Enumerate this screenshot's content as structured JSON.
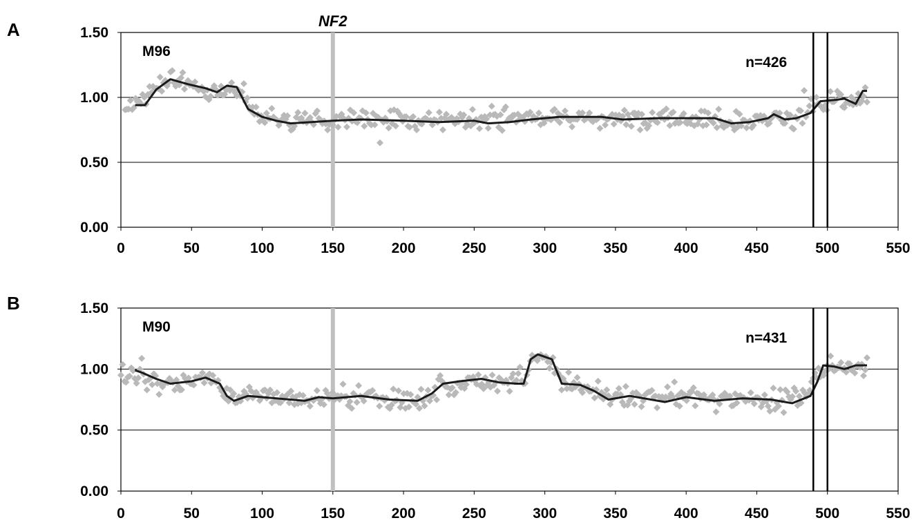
{
  "gene_label": "NF2",
  "colors": {
    "points": "#b9b9b9",
    "line": "#1a1a1a",
    "gene_marker": "#c0c0c0",
    "boundary": "#000000"
  },
  "chart_data": [
    {
      "panel": "A",
      "type": "scatter",
      "sample": "M96",
      "n_label": "n=426",
      "xlim": [
        0,
        550
      ],
      "ylim": [
        0,
        1.5
      ],
      "x_ticks": [
        0,
        50,
        100,
        150,
        200,
        250,
        300,
        350,
        400,
        450,
        500,
        550
      ],
      "y_ticks": [
        "0.00",
        "0.50",
        "1.00",
        "1.50"
      ],
      "gene_marker_x": 150,
      "boundary_x": [
        490,
        500
      ],
      "points": {
        "x_start": 3,
        "x_end": 528,
        "count": 426,
        "level": [
          [
            3,
            0.95
          ],
          [
            15,
            0.98
          ],
          [
            30,
            1.12
          ],
          [
            40,
            1.12
          ],
          [
            55,
            1.07
          ],
          [
            65,
            1.05
          ],
          [
            80,
            1.08
          ],
          [
            95,
            0.87
          ],
          [
            110,
            0.82
          ],
          [
            200,
            0.82
          ],
          [
            300,
            0.84
          ],
          [
            400,
            0.84
          ],
          [
            440,
            0.81
          ],
          [
            455,
            0.84
          ],
          [
            470,
            0.84
          ],
          [
            488,
            0.88
          ],
          [
            495,
            0.97
          ],
          [
            510,
            0.98
          ],
          [
            520,
            0.97
          ],
          [
            528,
            1.05
          ]
        ],
        "spread": 0.055
      },
      "smoothed": [
        [
          10,
          0.94
        ],
        [
          17,
          0.94
        ],
        [
          25,
          1.06
        ],
        [
          35,
          1.14
        ],
        [
          48,
          1.1
        ],
        [
          60,
          1.07
        ],
        [
          68,
          1.04
        ],
        [
          75,
          1.09
        ],
        [
          82,
          1.08
        ],
        [
          90,
          0.91
        ],
        [
          100,
          0.85
        ],
        [
          110,
          0.82
        ],
        [
          120,
          0.8
        ],
        [
          135,
          0.81
        ],
        [
          150,
          0.82
        ],
        [
          170,
          0.83
        ],
        [
          200,
          0.82
        ],
        [
          225,
          0.81
        ],
        [
          250,
          0.82
        ],
        [
          260,
          0.8
        ],
        [
          275,
          0.81
        ],
        [
          290,
          0.83
        ],
        [
          310,
          0.85
        ],
        [
          340,
          0.85
        ],
        [
          355,
          0.83
        ],
        [
          380,
          0.84
        ],
        [
          400,
          0.84
        ],
        [
          420,
          0.84
        ],
        [
          432,
          0.8
        ],
        [
          445,
          0.81
        ],
        [
          458,
          0.84
        ],
        [
          462,
          0.87
        ],
        [
          470,
          0.83
        ],
        [
          478,
          0.84
        ],
        [
          488,
          0.88
        ],
        [
          495,
          0.97
        ],
        [
          505,
          0.98
        ],
        [
          512,
          0.99
        ],
        [
          520,
          0.95
        ],
        [
          525,
          1.05
        ],
        [
          528,
          1.05
        ]
      ]
    },
    {
      "panel": "B",
      "type": "scatter",
      "sample": "M90",
      "n_label": "n=431",
      "xlim": [
        0,
        550
      ],
      "ylim": [
        0,
        1.5
      ],
      "x_ticks": [
        0,
        50,
        100,
        150,
        200,
        250,
        300,
        350,
        400,
        450,
        500,
        550
      ],
      "y_ticks": [
        "0.00",
        "0.50",
        "1.00",
        "1.50"
      ],
      "gene_marker_x": 150,
      "boundary_x": [
        490,
        500
      ],
      "points": {
        "x_start": 0,
        "x_end": 528,
        "count": 431,
        "level": [
          [
            0,
            0.95
          ],
          [
            15,
            0.95
          ],
          [
            30,
            0.88
          ],
          [
            50,
            0.9
          ],
          [
            65,
            0.92
          ],
          [
            75,
            0.78
          ],
          [
            100,
            0.77
          ],
          [
            130,
            0.75
          ],
          [
            160,
            0.77
          ],
          [
            190,
            0.75
          ],
          [
            215,
            0.77
          ],
          [
            225,
            0.86
          ],
          [
            250,
            0.9
          ],
          [
            275,
            0.88
          ],
          [
            285,
            0.95
          ],
          [
            292,
            1.1
          ],
          [
            305,
            1.05
          ],
          [
            315,
            0.88
          ],
          [
            330,
            0.86
          ],
          [
            345,
            0.78
          ],
          [
            380,
            0.75
          ],
          [
            400,
            0.77
          ],
          [
            430,
            0.75
          ],
          [
            470,
            0.74
          ],
          [
            485,
            0.78
          ],
          [
            492,
            0.95
          ],
          [
            500,
            1.04
          ],
          [
            528,
            1.03
          ]
        ],
        "spread": 0.06
      },
      "smoothed": [
        [
          10,
          0.99
        ],
        [
          15,
          0.97
        ],
        [
          25,
          0.92
        ],
        [
          35,
          0.88
        ],
        [
          50,
          0.9
        ],
        [
          60,
          0.93
        ],
        [
          70,
          0.88
        ],
        [
          75,
          0.78
        ],
        [
          80,
          0.74
        ],
        [
          90,
          0.78
        ],
        [
          100,
          0.77
        ],
        [
          110,
          0.76
        ],
        [
          130,
          0.74
        ],
        [
          140,
          0.77
        ],
        [
          150,
          0.76
        ],
        [
          160,
          0.77
        ],
        [
          170,
          0.78
        ],
        [
          190,
          0.75
        ],
        [
          210,
          0.74
        ],
        [
          220,
          0.8
        ],
        [
          228,
          0.88
        ],
        [
          240,
          0.9
        ],
        [
          255,
          0.92
        ],
        [
          268,
          0.89
        ],
        [
          280,
          0.88
        ],
        [
          285,
          0.88
        ],
        [
          290,
          1.08
        ],
        [
          295,
          1.12
        ],
        [
          305,
          1.08
        ],
        [
          312,
          0.88
        ],
        [
          325,
          0.87
        ],
        [
          335,
          0.82
        ],
        [
          345,
          0.75
        ],
        [
          360,
          0.78
        ],
        [
          385,
          0.73
        ],
        [
          400,
          0.77
        ],
        [
          420,
          0.74
        ],
        [
          440,
          0.76
        ],
        [
          460,
          0.75
        ],
        [
          475,
          0.72
        ],
        [
          488,
          0.78
        ],
        [
          493,
          0.9
        ],
        [
          497,
          1.03
        ],
        [
          505,
          1.02
        ],
        [
          512,
          1.0
        ],
        [
          520,
          1.03
        ],
        [
          528,
          1.03
        ]
      ]
    }
  ]
}
